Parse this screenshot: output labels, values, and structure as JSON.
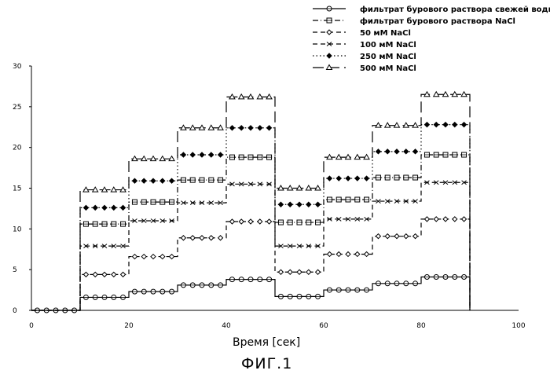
{
  "chart_data": {
    "type": "line",
    "xlabel": "Время [сек]",
    "ylabel": "",
    "caption": "ФИГ.1",
    "xlim": [
      0,
      100
    ],
    "ylim": [
      0,
      30
    ],
    "xticks": [
      0,
      20,
      40,
      60,
      80,
      100
    ],
    "yticks": [
      0,
      5,
      10,
      15,
      20,
      25,
      30
    ],
    "grid": false,
    "legend_position": "top-right",
    "segments_x": [
      [
        0,
        10
      ],
      [
        10,
        20
      ],
      [
        20,
        30
      ],
      [
        30,
        40
      ],
      [
        40,
        50
      ],
      [
        50,
        60
      ],
      [
        60,
        70
      ],
      [
        70,
        80
      ],
      [
        80,
        90
      ]
    ],
    "series": [
      {
        "name": "фильтрат бурового раствора свежей воды",
        "marker": "circle-open",
        "line": "solid",
        "values": [
          0,
          1.6,
          2.3,
          3.1,
          3.8,
          1.7,
          2.5,
          3.3,
          4.1
        ]
      },
      {
        "name": "фильтрат бурового раствора NaCl",
        "marker": "square-open",
        "line": "dashdot",
        "values": [
          0,
          10.6,
          13.3,
          16.0,
          18.8,
          10.8,
          13.6,
          16.3,
          19.1
        ]
      },
      {
        "name": "50 мМ NaCl",
        "marker": "diamond-open",
        "line": "dashed",
        "values": [
          0,
          4.4,
          6.6,
          8.9,
          10.9,
          4.7,
          6.9,
          9.1,
          11.2
        ]
      },
      {
        "name": "100 мМ NaCl",
        "marker": "x",
        "line": "dashed",
        "values": [
          0,
          7.9,
          11.0,
          13.2,
          15.5,
          7.9,
          11.2,
          13.4,
          15.7
        ]
      },
      {
        "name": "250 мМ NaCl",
        "marker": "diamond-filled",
        "line": "dotted",
        "values": [
          0,
          12.6,
          15.9,
          19.1,
          22.4,
          13.0,
          16.2,
          19.5,
          22.8
        ]
      },
      {
        "name": "500 мМ NaCl",
        "marker": "triangle-open",
        "line": "longdash",
        "values": [
          0,
          14.8,
          18.6,
          22.4,
          26.2,
          15.0,
          18.8,
          22.7,
          26.5
        ]
      }
    ]
  }
}
